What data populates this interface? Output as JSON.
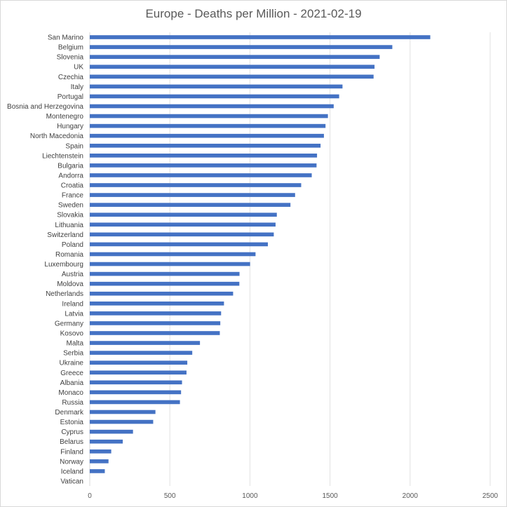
{
  "chart_data": {
    "type": "bar",
    "orientation": "horizontal",
    "title": "Europe - Deaths per Million - 2021-02-19",
    "xlabel": "",
    "ylabel": "",
    "xlim": [
      0,
      2500
    ],
    "xticks": [
      0,
      500,
      1000,
      1500,
      2000,
      2500
    ],
    "grid": true,
    "legend": "none",
    "bar_color": "#4472c4",
    "categories": [
      "San Marino",
      "Belgium",
      "Slovenia",
      "UK",
      "Czechia",
      "Italy",
      "Portugal",
      "Bosnia and Herzegovina",
      "Montenegro",
      "Hungary",
      "North Macedonia",
      "Spain",
      "Liechtenstein",
      "Bulgaria",
      "Andorra",
      "Croatia",
      "France",
      "Sweden",
      "Slovakia",
      "Lithuania",
      "Switzerland",
      "Poland",
      "Romania",
      "Luxembourg",
      "Austria",
      "Moldova",
      "Netherlands",
      "Ireland",
      "Latvia",
      "Germany",
      "Kosovo",
      "Malta",
      "Serbia",
      "Ukraine",
      "Greece",
      "Albania",
      "Monaco",
      "Russia",
      "Denmark",
      "Estonia",
      "Cyprus",
      "Belarus",
      "Finland",
      "Norway",
      "Iceland",
      "Vatican"
    ],
    "values": [
      2126,
      1889,
      1810,
      1778,
      1772,
      1578,
      1557,
      1523,
      1487,
      1472,
      1462,
      1441,
      1419,
      1416,
      1386,
      1320,
      1282,
      1253,
      1168,
      1160,
      1149,
      1112,
      1035,
      1001,
      935,
      934,
      895,
      838,
      820,
      815,
      812,
      688,
      640,
      609,
      604,
      576,
      570,
      563,
      410,
      396,
      270,
      206,
      134,
      117,
      94,
      0
    ]
  }
}
